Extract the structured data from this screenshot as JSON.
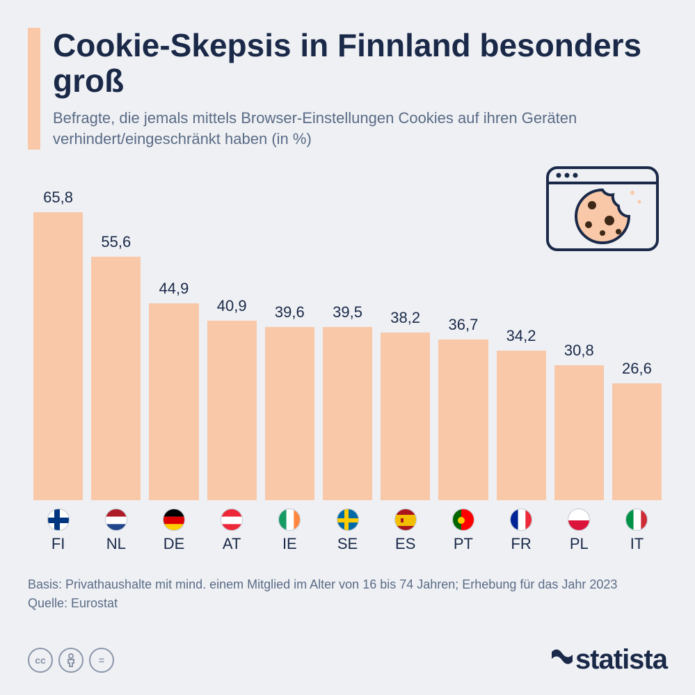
{
  "title": "Cookie-Skepsis in Finnland besonders groß",
  "subtitle": "Befragte, die jemals mittels Browser-Einstellungen Cookies auf ihren Geräten verhindert/eingeschränkt haben (in %)",
  "chart": {
    "type": "bar",
    "bar_color": "#f9c8a8",
    "background_color": "#eef0f4",
    "title_color": "#1a2948",
    "text_color": "#5a6b85",
    "value_fontsize": 22,
    "label_fontsize": 22,
    "max_value": 70,
    "data": [
      {
        "code": "FI",
        "value": 65.8,
        "label": "65,8",
        "flag": "FI"
      },
      {
        "code": "NL",
        "value": 55.6,
        "label": "55,6",
        "flag": "NL"
      },
      {
        "code": "DE",
        "value": 44.9,
        "label": "44,9",
        "flag": "DE"
      },
      {
        "code": "AT",
        "value": 40.9,
        "label": "40,9",
        "flag": "AT"
      },
      {
        "code": "IE",
        "value": 39.6,
        "label": "39,6",
        "flag": "IE"
      },
      {
        "code": "SE",
        "value": 39.5,
        "label": "39,5",
        "flag": "SE"
      },
      {
        "code": "ES",
        "value": 38.2,
        "label": "38,2",
        "flag": "ES"
      },
      {
        "code": "PT",
        "value": 36.7,
        "label": "36,7",
        "flag": "PT"
      },
      {
        "code": "FR",
        "value": 34.2,
        "label": "34,2",
        "flag": "FR"
      },
      {
        "code": "PL",
        "value": 30.8,
        "label": "30,8",
        "flag": "PL"
      },
      {
        "code": "IT",
        "value": 26.6,
        "label": "26,6",
        "flag": "IT"
      }
    ]
  },
  "footer": {
    "basis": "Basis: Privathaushalte mit mind. einem Mitglied im Alter von 16 bis 74 Jahren; Erhebung für das Jahr 2023",
    "source": "Quelle: Eurostat"
  },
  "brand": "statista",
  "flag_colors": {
    "FI": {
      "bg": "#ffffff",
      "cross": "#003580"
    },
    "NL": {
      "top": "#ae1c28",
      "mid": "#ffffff",
      "bot": "#21468b"
    },
    "DE": {
      "top": "#000000",
      "mid": "#dd0000",
      "bot": "#ffce00"
    },
    "AT": {
      "top": "#ed2939",
      "mid": "#ffffff",
      "bot": "#ed2939"
    },
    "IE": {
      "left": "#169b62",
      "mid": "#ffffff",
      "right": "#ff883e"
    },
    "SE": {
      "bg": "#006aa7",
      "cross": "#fecc00"
    },
    "ES": {
      "top": "#aa151b",
      "mid": "#f1bf00",
      "bot": "#aa151b"
    },
    "PT": {
      "left": "#006600",
      "right": "#ff0000",
      "emblem": "#ffcc00"
    },
    "FR": {
      "left": "#002395",
      "mid": "#ffffff",
      "right": "#ed2939"
    },
    "PL": {
      "top": "#ffffff",
      "bot": "#dc143c"
    },
    "IT": {
      "left": "#009246",
      "mid": "#ffffff",
      "right": "#ce2b37"
    }
  },
  "icon": {
    "stroke": "#1a2948",
    "cookie_fill": "#f9c8a8",
    "chip_fill": "#3d2817"
  }
}
